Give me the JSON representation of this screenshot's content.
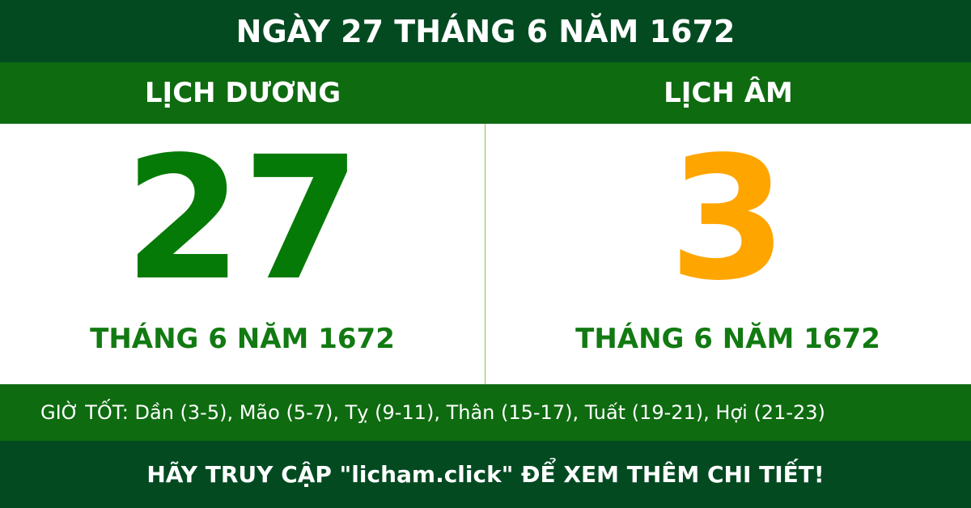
{
  "header": {
    "title": "NGÀY 27 THÁNG 6 NĂM 1672"
  },
  "solar": {
    "label": "LỊCH DƯƠNG",
    "day": "27",
    "month_year": "THÁNG 6 NĂM 1672"
  },
  "lunar": {
    "label": "LỊCH ÂM",
    "day": "3",
    "month_year": "THÁNG 6 NĂM 1672"
  },
  "good_hours": "GIỜ TỐT: Dần (3-5), Mão (5-7), Tỵ (9-11), Thân (15-17), Tuất (19-21), Hợi (21-23)",
  "footer": "HÃY TRUY CẬP \"licham.click\" ĐỂ XEM THÊM CHI TIẾT!"
}
